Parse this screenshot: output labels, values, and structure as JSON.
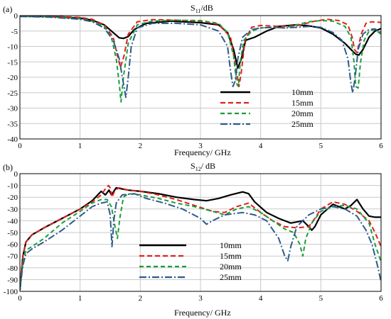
{
  "chart_data": [
    {
      "type": "line",
      "panel_label": "(a)",
      "title": "S11/dB",
      "title_main": "S",
      "title_sub": "11",
      "title_unit": "/dB",
      "xlabel": "Frequency/ GHz",
      "ylabel": "",
      "xlim": [
        0,
        6
      ],
      "ylim": [
        -40,
        0
      ],
      "xticks": [
        0,
        1,
        2,
        3,
        4,
        5,
        6
      ],
      "yticks": [
        0,
        -5,
        -10,
        -15,
        -20,
        -25,
        -30,
        -35,
        -40
      ],
      "grid": true,
      "legend_position": "lower-right",
      "series": [
        {
          "name": "10mm",
          "color": "#000000",
          "dash": "solid",
          "x": [
            0,
            0.5,
            1.0,
            1.2,
            1.4,
            1.55,
            1.65,
            1.72,
            1.8,
            1.9,
            2.1,
            2.5,
            3.0,
            3.3,
            3.45,
            3.55,
            3.62,
            3.68,
            3.75,
            3.9,
            4.1,
            4.3,
            4.6,
            4.8,
            5.0,
            5.2,
            5.4,
            5.5,
            5.58,
            5.63,
            5.7,
            5.8,
            5.9,
            6.0
          ],
          "y": [
            -0.2,
            -0.3,
            -0.8,
            -1.5,
            -3,
            -5.5,
            -7.2,
            -7.4,
            -6.8,
            -4.5,
            -2.5,
            -1.8,
            -2.3,
            -3,
            -5.5,
            -11,
            -17,
            -14,
            -8,
            -7,
            -5,
            -3.5,
            -3,
            -3.3,
            -4,
            -6,
            -9,
            -11,
            -12.5,
            -12.8,
            -11,
            -7,
            -5,
            -4.2
          ]
        },
        {
          "name": "15mm",
          "color": "#e0201b",
          "dash": "7,4",
          "x": [
            0,
            0.5,
            1.0,
            1.2,
            1.4,
            1.55,
            1.62,
            1.67,
            1.73,
            1.8,
            1.95,
            2.2,
            2.6,
            3.0,
            3.3,
            3.5,
            3.58,
            3.64,
            3.68,
            3.74,
            3.85,
            4.0,
            4.3,
            4.6,
            4.9,
            5.1,
            5.3,
            5.45,
            5.52,
            5.56,
            5.6,
            5.67,
            5.75,
            5.85,
            6.0
          ],
          "y": [
            -0.1,
            -0.2,
            -0.6,
            -1.2,
            -3,
            -7,
            -13,
            -16.8,
            -13,
            -6,
            -2,
            -1.3,
            -1.5,
            -1.8,
            -2.8,
            -7,
            -16,
            -23,
            -18,
            -8,
            -3.8,
            -3.2,
            -3.5,
            -3.3,
            -1.8,
            -1.2,
            -1.6,
            -3,
            -7,
            -11,
            -12,
            -6,
            -2.5,
            -2,
            -2.2
          ]
        },
        {
          "name": "20mm",
          "color": "#1a9e3a",
          "dash": "6,4",
          "x": [
            0,
            0.5,
            1.0,
            1.2,
            1.4,
            1.52,
            1.6,
            1.65,
            1.68,
            1.72,
            1.8,
            1.95,
            2.2,
            2.6,
            3.0,
            3.3,
            3.45,
            3.55,
            3.6,
            3.63,
            3.66,
            3.72,
            3.85,
            4.0,
            4.2,
            4.4,
            4.6,
            4.8,
            5.0,
            5.2,
            5.4,
            5.5,
            5.55,
            5.58,
            5.62,
            5.66,
            5.72,
            5.8,
            5.9,
            6.0
          ],
          "y": [
            -0.2,
            -0.4,
            -1,
            -1.8,
            -3.5,
            -7,
            -14,
            -22,
            -28,
            -20,
            -9,
            -3,
            -1.8,
            -1.5,
            -1.6,
            -2.5,
            -5.5,
            -13,
            -22,
            -23,
            -15,
            -8,
            -5,
            -4,
            -3.8,
            -4,
            -3,
            -2,
            -1.6,
            -1.8,
            -3.5,
            -7,
            -15,
            -23,
            -23.5,
            -15,
            -8,
            -5,
            -4.5,
            -6
          ]
        },
        {
          "name": "25mm",
          "color": "#2e5b8c",
          "dash": "10,3,2,3",
          "x": [
            0,
            0.5,
            1.0,
            1.2,
            1.4,
            1.55,
            1.65,
            1.72,
            1.76,
            1.8,
            1.85,
            1.95,
            2.2,
            2.6,
            3.0,
            3.3,
            3.45,
            3.5,
            3.54,
            3.58,
            3.62,
            3.7,
            3.85,
            4.0,
            4.2,
            4.4,
            4.6,
            4.8,
            5.0,
            5.2,
            5.35,
            5.45,
            5.5,
            5.53,
            5.57,
            5.62,
            5.7,
            5.8,
            5.9,
            6.0
          ],
          "y": [
            -0.3,
            -0.5,
            -1.2,
            -2,
            -4,
            -8,
            -14,
            -22,
            -26.5,
            -20,
            -10,
            -4,
            -2.5,
            -2.5,
            -3,
            -5,
            -10,
            -18,
            -23,
            -21,
            -14,
            -7,
            -4.5,
            -4,
            -3.8,
            -4,
            -3.8,
            -3.5,
            -3.8,
            -5.5,
            -8,
            -14,
            -22,
            -25,
            -20,
            -11,
            -6,
            -4.5,
            -4.3,
            -5.5
          ]
        }
      ]
    },
    {
      "type": "line",
      "panel_label": "(b)",
      "title": "S12/ dB",
      "title_main": "S",
      "title_sub": "12",
      "title_unit": "/ dB",
      "xlabel": "Frequency/ GHz",
      "ylabel": "",
      "xlim": [
        0,
        6
      ],
      "ylim": [
        -100,
        0
      ],
      "xticks": [
        0,
        1,
        2,
        3,
        4,
        5,
        6
      ],
      "yticks": [
        0,
        -10,
        -20,
        -30,
        -40,
        -50,
        -60,
        -70,
        -80,
        -90,
        -100
      ],
      "grid": true,
      "legend_position": "lower-left",
      "series": [
        {
          "name": "10mm",
          "color": "#000000",
          "dash": "solid",
          "x": [
            0,
            0.02,
            0.05,
            0.1,
            0.2,
            0.4,
            0.7,
            1.0,
            1.2,
            1.35,
            1.42,
            1.48,
            1.52,
            1.6,
            1.8,
            2.0,
            2.3,
            2.6,
            2.9,
            3.1,
            3.3,
            3.5,
            3.7,
            3.8,
            3.9,
            4.1,
            4.3,
            4.4,
            4.5,
            4.6,
            4.7,
            4.8,
            4.85,
            4.9,
            5.0,
            5.2,
            5.4,
            5.5,
            5.6,
            5.7,
            5.8,
            5.9,
            6.0
          ],
          "y": [
            -99,
            -88,
            -70,
            -58,
            -52,
            -46,
            -38,
            -30,
            -23,
            -15,
            -18,
            -14,
            -18,
            -12,
            -14,
            -15,
            -17,
            -20,
            -22,
            -23,
            -21,
            -18,
            -15.5,
            -17,
            -24,
            -33,
            -38,
            -40,
            -42,
            -41,
            -40,
            -45,
            -48,
            -45,
            -35,
            -26,
            -30,
            -27,
            -22,
            -30,
            -36,
            -37,
            -37
          ]
        },
        {
          "name": "15mm",
          "color": "#e0201b",
          "dash": "7,4",
          "x": [
            0,
            0.02,
            0.05,
            0.1,
            0.2,
            0.4,
            0.7,
            1.0,
            1.2,
            1.35,
            1.42,
            1.47,
            1.5,
            1.53,
            1.58,
            1.65,
            1.8,
            2.0,
            2.3,
            2.6,
            2.9,
            3.2,
            3.4,
            3.6,
            3.8,
            4.0,
            4.2,
            4.4,
            4.6,
            4.8,
            4.9,
            5.0,
            5.2,
            5.4,
            5.6,
            5.8,
            5.9,
            6.0
          ],
          "y": [
            -99,
            -85,
            -70,
            -58,
            -52,
            -46,
            -38,
            -30,
            -24,
            -18,
            -13,
            -10,
            -12,
            -20,
            -14,
            -12,
            -14,
            -15,
            -18,
            -22,
            -27,
            -32,
            -33,
            -28,
            -25,
            -33,
            -40,
            -45,
            -46,
            -45,
            -38,
            -30,
            -24,
            -26,
            -32,
            -40,
            -50,
            -62
          ]
        },
        {
          "name": "20mm",
          "color": "#1a9e3a",
          "dash": "6,4",
          "x": [
            0,
            0.02,
            0.05,
            0.1,
            0.2,
            0.4,
            0.7,
            1.0,
            1.2,
            1.35,
            1.45,
            1.52,
            1.58,
            1.62,
            1.66,
            1.72,
            1.8,
            2.0,
            2.3,
            2.6,
            2.9,
            3.2,
            3.4,
            3.6,
            3.8,
            4.0,
            4.2,
            4.4,
            4.55,
            4.65,
            4.7,
            4.75,
            4.85,
            5.0,
            5.2,
            5.4,
            5.6,
            5.8,
            5.9,
            6.0
          ],
          "y": [
            -99,
            -90,
            -75,
            -65,
            -62,
            -55,
            -42,
            -32,
            -25,
            -22,
            -22,
            -28,
            -45,
            -55,
            -38,
            -20,
            -17,
            -18,
            -21,
            -25,
            -28,
            -32,
            -35,
            -30,
            -28,
            -33,
            -40,
            -47,
            -50,
            -60,
            -70,
            -55,
            -42,
            -32,
            -28,
            -27,
            -30,
            -42,
            -60,
            -75
          ]
        },
        {
          "name": "25mm",
          "color": "#2e5b8c",
          "dash": "10,3,2,3",
          "x": [
            0,
            0.02,
            0.05,
            0.1,
            0.2,
            0.4,
            0.7,
            1.0,
            1.2,
            1.35,
            1.45,
            1.5,
            1.53,
            1.56,
            1.6,
            1.7,
            1.9,
            2.1,
            2.4,
            2.7,
            3.0,
            3.1,
            3.2,
            3.4,
            3.7,
            3.9,
            4.1,
            4.3,
            4.4,
            4.45,
            4.5,
            4.6,
            4.8,
            5.0,
            5.2,
            5.4,
            5.6,
            5.75,
            5.85,
            5.95,
            6.0
          ],
          "y": [
            -99,
            -90,
            -78,
            -68,
            -64,
            -58,
            -48,
            -36,
            -28,
            -25,
            -24,
            -35,
            -62,
            -40,
            -25,
            -18,
            -17,
            -21,
            -25,
            -30,
            -38,
            -43,
            -40,
            -35,
            -33,
            -35,
            -40,
            -55,
            -70,
            -74,
            -62,
            -45,
            -35,
            -30,
            -28,
            -30,
            -36,
            -48,
            -60,
            -80,
            -92
          ]
        }
      ]
    }
  ]
}
